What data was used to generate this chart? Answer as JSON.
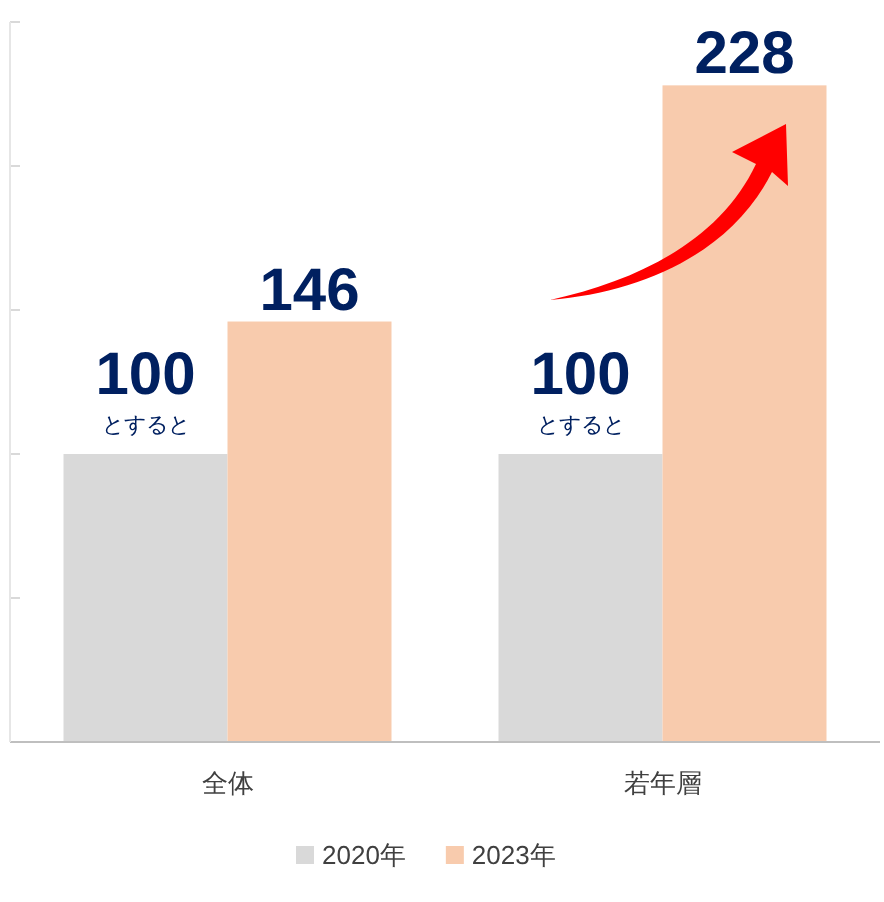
{
  "chart_data": {
    "type": "bar",
    "categories": [
      "全体",
      "若年層"
    ],
    "series": [
      {
        "name": "2020年",
        "color": "#d9d9d9",
        "values": [
          100,
          100
        ]
      },
      {
        "name": "2023年",
        "color": "#f8cbad",
        "values": [
          146,
          228
        ]
      }
    ],
    "ylim": [
      0,
      250
    ],
    "yticks": [
      {
        "value": 0,
        "label": null
      },
      {
        "value": 50,
        "label": null
      },
      {
        "value": 100,
        "label": null
      },
      {
        "value": 150,
        "label": null
      },
      {
        "value": 200,
        "label": null
      },
      {
        "value": 250,
        "label": null
      }
    ],
    "data_labels": true,
    "annotations": [
      {
        "text": "とすると",
        "x": "全体",
        "y": 100
      },
      {
        "text": "とすると",
        "x": "若年層",
        "y": 100
      }
    ],
    "legend": "bottom",
    "grid": false
  }
}
